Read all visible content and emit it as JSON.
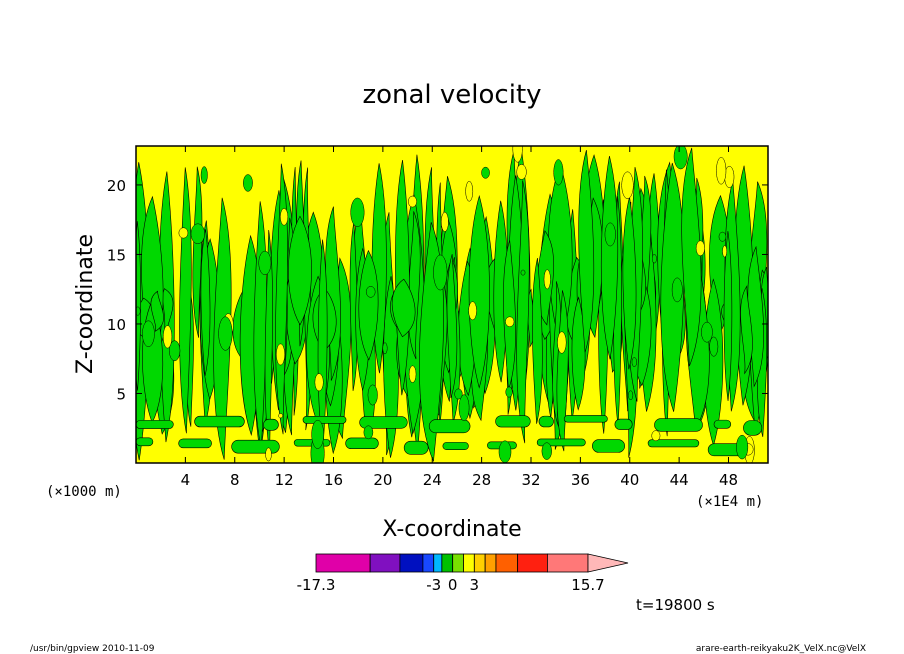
{
  "chart_data": {
    "type": "heatmap",
    "title": "zonal velocity",
    "xlabel": "X-coordinate",
    "ylabel": "Z-coordinate",
    "x_unit_left": "(×1000 m)",
    "x_unit_right": "(×1E4 m)",
    "xlim": [
      0,
      51.2
    ],
    "ylim": [
      0,
      22.8
    ],
    "x_ticks": [
      4,
      8,
      12,
      16,
      20,
      24,
      28,
      32,
      36,
      40,
      44,
      48
    ],
    "y_ticks": [
      5,
      10,
      15,
      20
    ],
    "time_label": "t=19800 s",
    "colorbar": {
      "colors": [
        "#e000a8",
        "#8010c0",
        "#0010c0",
        "#1848ff",
        "#00b8ff",
        "#00c000",
        "#78e000",
        "#ffff00",
        "#ffd000",
        "#ffa000",
        "#ff6000",
        "#ff2010",
        "#ff7878",
        "#ffb8b8"
      ],
      "tick_labels": [
        "-17.3",
        "-3",
        "0",
        "3",
        "15.7"
      ],
      "extend": "max"
    }
  },
  "footer": {
    "left": "/usr/bin/gpview  2010-11-09",
    "right": "arare-earth-reikyaku2K_VelX.nc@VelX"
  }
}
